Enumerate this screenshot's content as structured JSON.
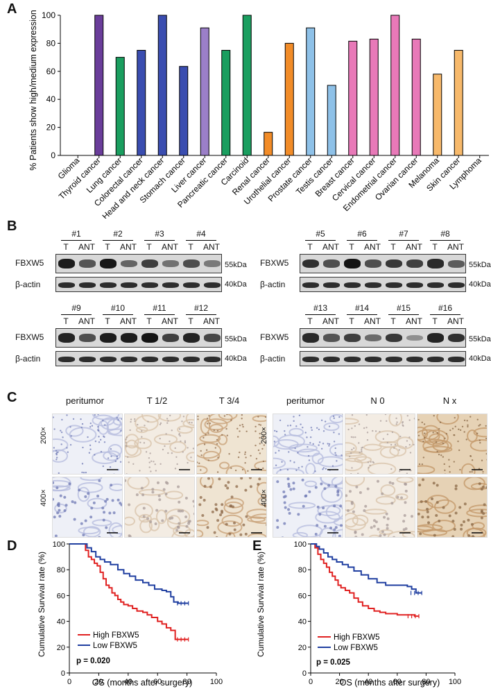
{
  "panels": {
    "A": "A",
    "B": "B",
    "C": "C",
    "D": "D",
    "E": "E"
  },
  "panelA": {
    "ylabel": "% Patients show high/medium expression",
    "yticks": [
      "0",
      "20",
      "40",
      "60",
      "80",
      "100"
    ],
    "chart_data": {
      "type": "bar",
      "categories": [
        "Glioma",
        "Thyroid cancer",
        "Lung cancer",
        "Colorectal cancer",
        "Head and neck cancer",
        "Stomach cancer",
        "Liver cancer",
        "Pancreatic cancer",
        "Carcinoid",
        "Renal cancer",
        "Urothelial cancer",
        "Prostate cancer",
        "Testis cancer",
        "Breast cancer",
        "Cervical cancer",
        "Endometrial cancer",
        "Ovarian cancer",
        "Melanoma",
        "Skin cancer",
        "Lymphoma"
      ],
      "values": [
        0,
        100,
        70,
        75,
        100,
        63.5,
        91,
        75,
        100,
        16.5,
        80,
        91,
        50,
        81.5,
        83,
        100,
        83,
        58,
        75,
        0
      ],
      "colors": [
        "#ffffff",
        "#6a3d9a",
        "#1a9e5f",
        "#3a4db0",
        "#3a4db0",
        "#3a4db0",
        "#9b7fc8",
        "#1a9e5f",
        "#1a9e5f",
        "#f28c28",
        "#f28c28",
        "#8ec1e8",
        "#8ec1e8",
        "#e879b8",
        "#e879b8",
        "#e879b8",
        "#e879b8",
        "#f7b96b",
        "#f7b96b",
        "#ffffff"
      ],
      "ylim": [
        0,
        100
      ]
    }
  },
  "panelB": {
    "fbxw5": "FBXW5",
    "actin": "β-actin",
    "kda55": "55kDa",
    "kda40": "40kDa",
    "lane_t": "T",
    "lane_ant": "ANT",
    "groups": [
      {
        "samples": [
          "#1",
          "#2",
          "#3",
          "#4"
        ]
      },
      {
        "samples": [
          "#5",
          "#6",
          "#7",
          "#8"
        ]
      },
      {
        "samples": [
          "#9",
          "#10",
          "#11",
          "#12"
        ]
      },
      {
        "samples": [
          "#13",
          "#14",
          "#15",
          "#16"
        ]
      }
    ]
  },
  "panelC": {
    "left_cols": [
      "peritumor",
      "T 1/2",
      "T 3/4"
    ],
    "right_cols": [
      "peritumor",
      "N 0",
      "N x"
    ],
    "rows": [
      "200×",
      "400×"
    ]
  },
  "panelD": {
    "ylabel": "Cumulative Survival rate (%)",
    "xlabel": "OS (months after surgery)",
    "pvalue": "p = 0.020",
    "legend_high": "High FBXW5",
    "legend_low": "Low FBXW5",
    "xticks": [
      "0",
      "20",
      "40",
      "60",
      "80",
      "100"
    ],
    "yticks": [
      "0",
      "20",
      "40",
      "60",
      "80",
      "100"
    ],
    "chart_data": {
      "type": "line",
      "xlim": [
        0,
        100
      ],
      "ylim": [
        0,
        100
      ],
      "series": [
        {
          "name": "High FBXW5",
          "color": "#e02020",
          "x": [
            0,
            9,
            11,
            13,
            15,
            17,
            19,
            21,
            23,
            25,
            27,
            29,
            31,
            33,
            35,
            37,
            40,
            43,
            46,
            50,
            53,
            56,
            60,
            63,
            66,
            69,
            72,
            75,
            81
          ],
          "y": [
            100,
            100,
            95,
            90,
            88,
            85,
            83,
            78,
            73,
            68,
            66,
            62,
            60,
            57,
            55,
            53,
            52,
            50,
            48,
            47,
            45,
            43,
            40,
            38,
            35,
            33,
            26,
            26,
            26
          ]
        },
        {
          "name": "Low FBXW5",
          "color": "#1f3ea0",
          "x": [
            0,
            10,
            12,
            15,
            18,
            21,
            24,
            28,
            33,
            37,
            41,
            45,
            50,
            54,
            58,
            63,
            66,
            69,
            71,
            74,
            81
          ],
          "y": [
            100,
            100,
            97,
            94,
            90,
            88,
            86,
            84,
            80,
            77,
            75,
            72,
            70,
            68,
            65,
            64,
            63,
            59,
            55,
            54,
            54
          ]
        }
      ]
    }
  },
  "panelE": {
    "ylabel": "Cumulative Survival rate (%)",
    "xlabel": "OS (months after surgery)",
    "pvalue": "p = 0.025",
    "legend_high": "High FBXW5",
    "legend_low": "Low FBXW5",
    "xticks": [
      "0",
      "20",
      "40",
      "60",
      "80",
      "100"
    ],
    "yticks": [
      "0",
      "20",
      "40",
      "60",
      "80",
      "100"
    ],
    "chart_data": {
      "type": "line",
      "xlim": [
        0,
        100
      ],
      "ylim": [
        0,
        100
      ],
      "series": [
        {
          "name": "High FBXW5",
          "color": "#e02020",
          "x": [
            0,
            3,
            5,
            7,
            9,
            11,
            13,
            15,
            17,
            19,
            21,
            24,
            27,
            30,
            33,
            36,
            40,
            44,
            48,
            52,
            56,
            60,
            66,
            72,
            75
          ],
          "y": [
            100,
            97,
            92,
            88,
            85,
            82,
            78,
            75,
            72,
            68,
            66,
            64,
            62,
            58,
            55,
            52,
            50,
            48,
            47,
            46,
            46,
            45,
            45,
            44,
            44
          ]
        },
        {
          "name": "Low FBXW5",
          "color": "#1f3ea0",
          "x": [
            0,
            4,
            6,
            9,
            12,
            15,
            18,
            22,
            26,
            30,
            35,
            40,
            46,
            52,
            58,
            63,
            67,
            70,
            73,
            77
          ],
          "y": [
            100,
            98,
            96,
            93,
            90,
            88,
            86,
            84,
            82,
            79,
            76,
            73,
            70,
            68,
            68,
            68,
            67,
            65,
            62,
            62
          ]
        }
      ]
    }
  }
}
